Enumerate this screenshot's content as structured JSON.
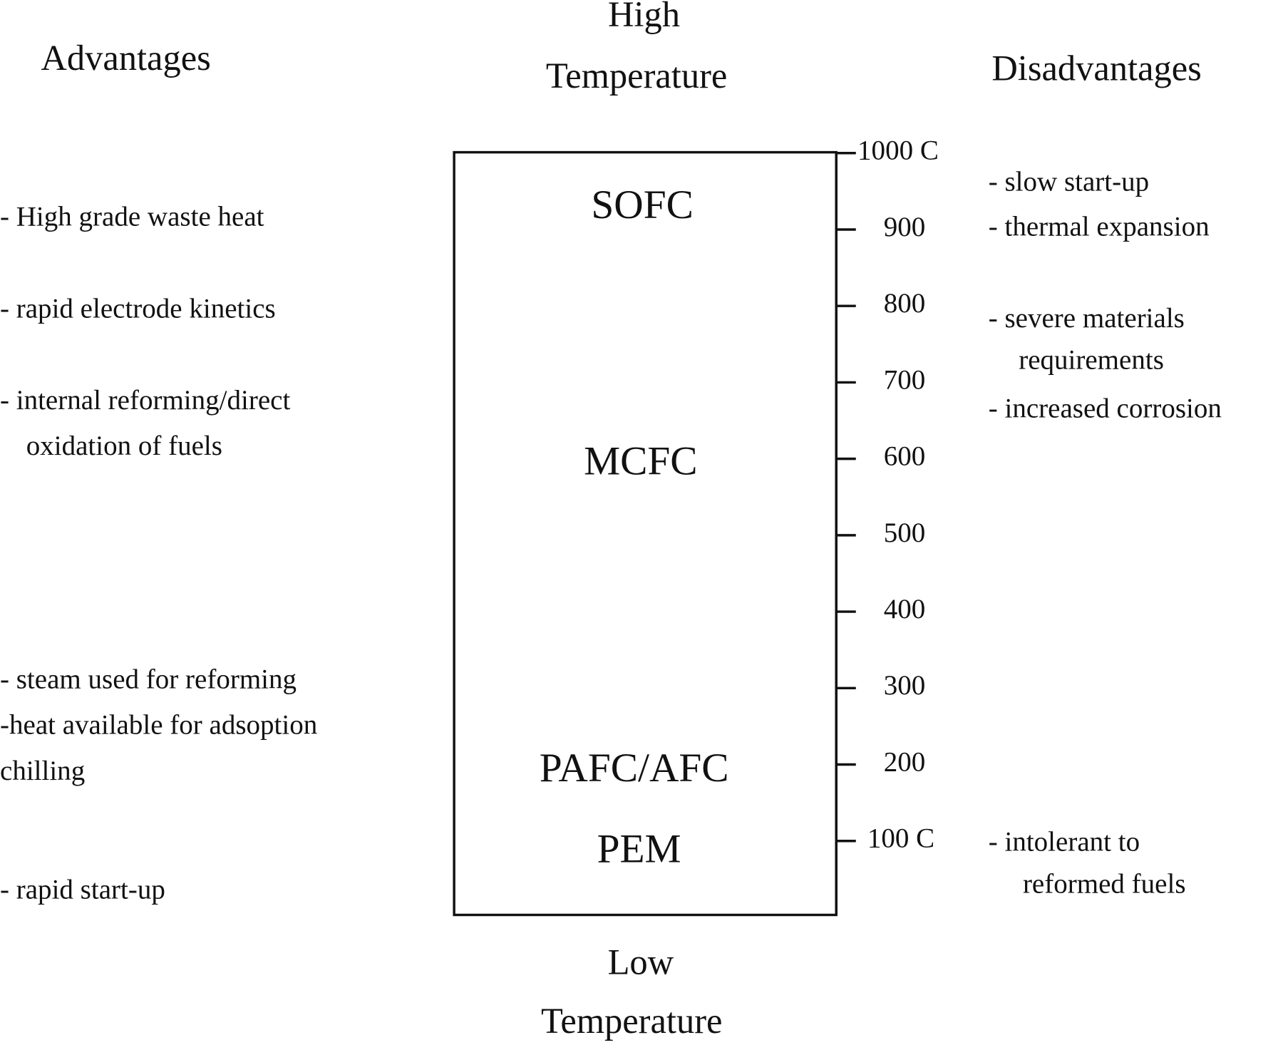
{
  "header": {
    "high": [
      "High",
      "Temperature"
    ],
    "low": [
      "Low",
      "Temperature"
    ],
    "advantages_title": "Advantages",
    "disadvantages_title": "Disadvantages"
  },
  "fuel_cells": [
    "SOFC",
    "MCFC",
    "PAFC/AFC",
    "PEM"
  ],
  "scale": [
    "1000 C",
    "900",
    "800",
    "700",
    "600",
    "500",
    "400",
    "300",
    "200",
    "100 C"
  ],
  "advantages": [
    [
      "- High grade waste heat"
    ],
    [
      "- rapid electrode kinetics"
    ],
    [
      "- internal reforming/direct",
      "oxidation of fuels"
    ],
    [
      "- steam used for reforming",
      "-heat available for adsoption",
      "chilling"
    ],
    [
      "- rapid start-up"
    ]
  ],
  "disadvantages": [
    [
      "- slow start-up"
    ],
    [
      "- thermal expansion"
    ],
    [
      "- severe materials",
      "requirements"
    ],
    [
      "- increased corrosion"
    ],
    [
      "- intolerant to",
      "reformed fuels"
    ]
  ]
}
